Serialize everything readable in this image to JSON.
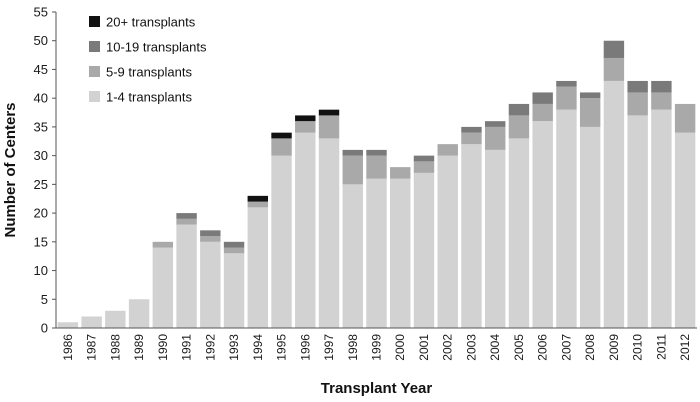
{
  "chart_data": {
    "type": "bar",
    "stacked": true,
    "title": "",
    "xlabel": "Transplant Year",
    "ylabel": "Number of Centers",
    "ylim": [
      0,
      55
    ],
    "yticks": [
      "0",
      "5",
      "10",
      "15",
      "20",
      "25",
      "30",
      "35",
      "40",
      "45",
      "50",
      "55"
    ],
    "grid": false,
    "legend_position": "top-left",
    "categories": [
      "1986",
      "1987",
      "1988",
      "1989",
      "1990",
      "1991",
      "1992",
      "1993",
      "1994",
      "1995",
      "1996",
      "1997",
      "1998",
      "1999",
      "2000",
      "2001",
      "2002",
      "2003",
      "2004",
      "2005",
      "2006",
      "2007",
      "2008",
      "2009",
      "2010",
      "2011",
      "2012"
    ],
    "series": [
      {
        "name": "1-4 transplants",
        "color": "#d2d2d2",
        "values": [
          1,
          2,
          3,
          5,
          14,
          18,
          15,
          13,
          21,
          30,
          34,
          33,
          25,
          26,
          26,
          27,
          30,
          32,
          31,
          33,
          36,
          38,
          35,
          43,
          37,
          38,
          34
        ]
      },
      {
        "name": "5-9 transplants",
        "color": "#a9a9a9",
        "values": [
          0,
          0,
          0,
          0,
          1,
          1,
          1,
          1,
          1,
          3,
          2,
          4,
          5,
          4,
          2,
          2,
          2,
          2,
          4,
          4,
          3,
          4,
          5,
          4,
          4,
          3,
          5
        ]
      },
      {
        "name": "10-19 transplants",
        "color": "#7a7a7a",
        "values": [
          0,
          0,
          0,
          0,
          0,
          1,
          1,
          1,
          0,
          0,
          0,
          0,
          1,
          1,
          0,
          1,
          0,
          1,
          1,
          2,
          2,
          1,
          1,
          3,
          2,
          2,
          0
        ]
      },
      {
        "name": "20+ transplants",
        "color": "#111111",
        "values": [
          0,
          0,
          0,
          0,
          0,
          0,
          0,
          0,
          1,
          1,
          1,
          1,
          0,
          0,
          0,
          0,
          0,
          0,
          0,
          0,
          0,
          0,
          0,
          0,
          0,
          0,
          0
        ]
      }
    ],
    "legend_order": [
      "20+ transplants",
      "10-19 transplants",
      "5-9 transplants",
      "1-4 transplants"
    ]
  }
}
